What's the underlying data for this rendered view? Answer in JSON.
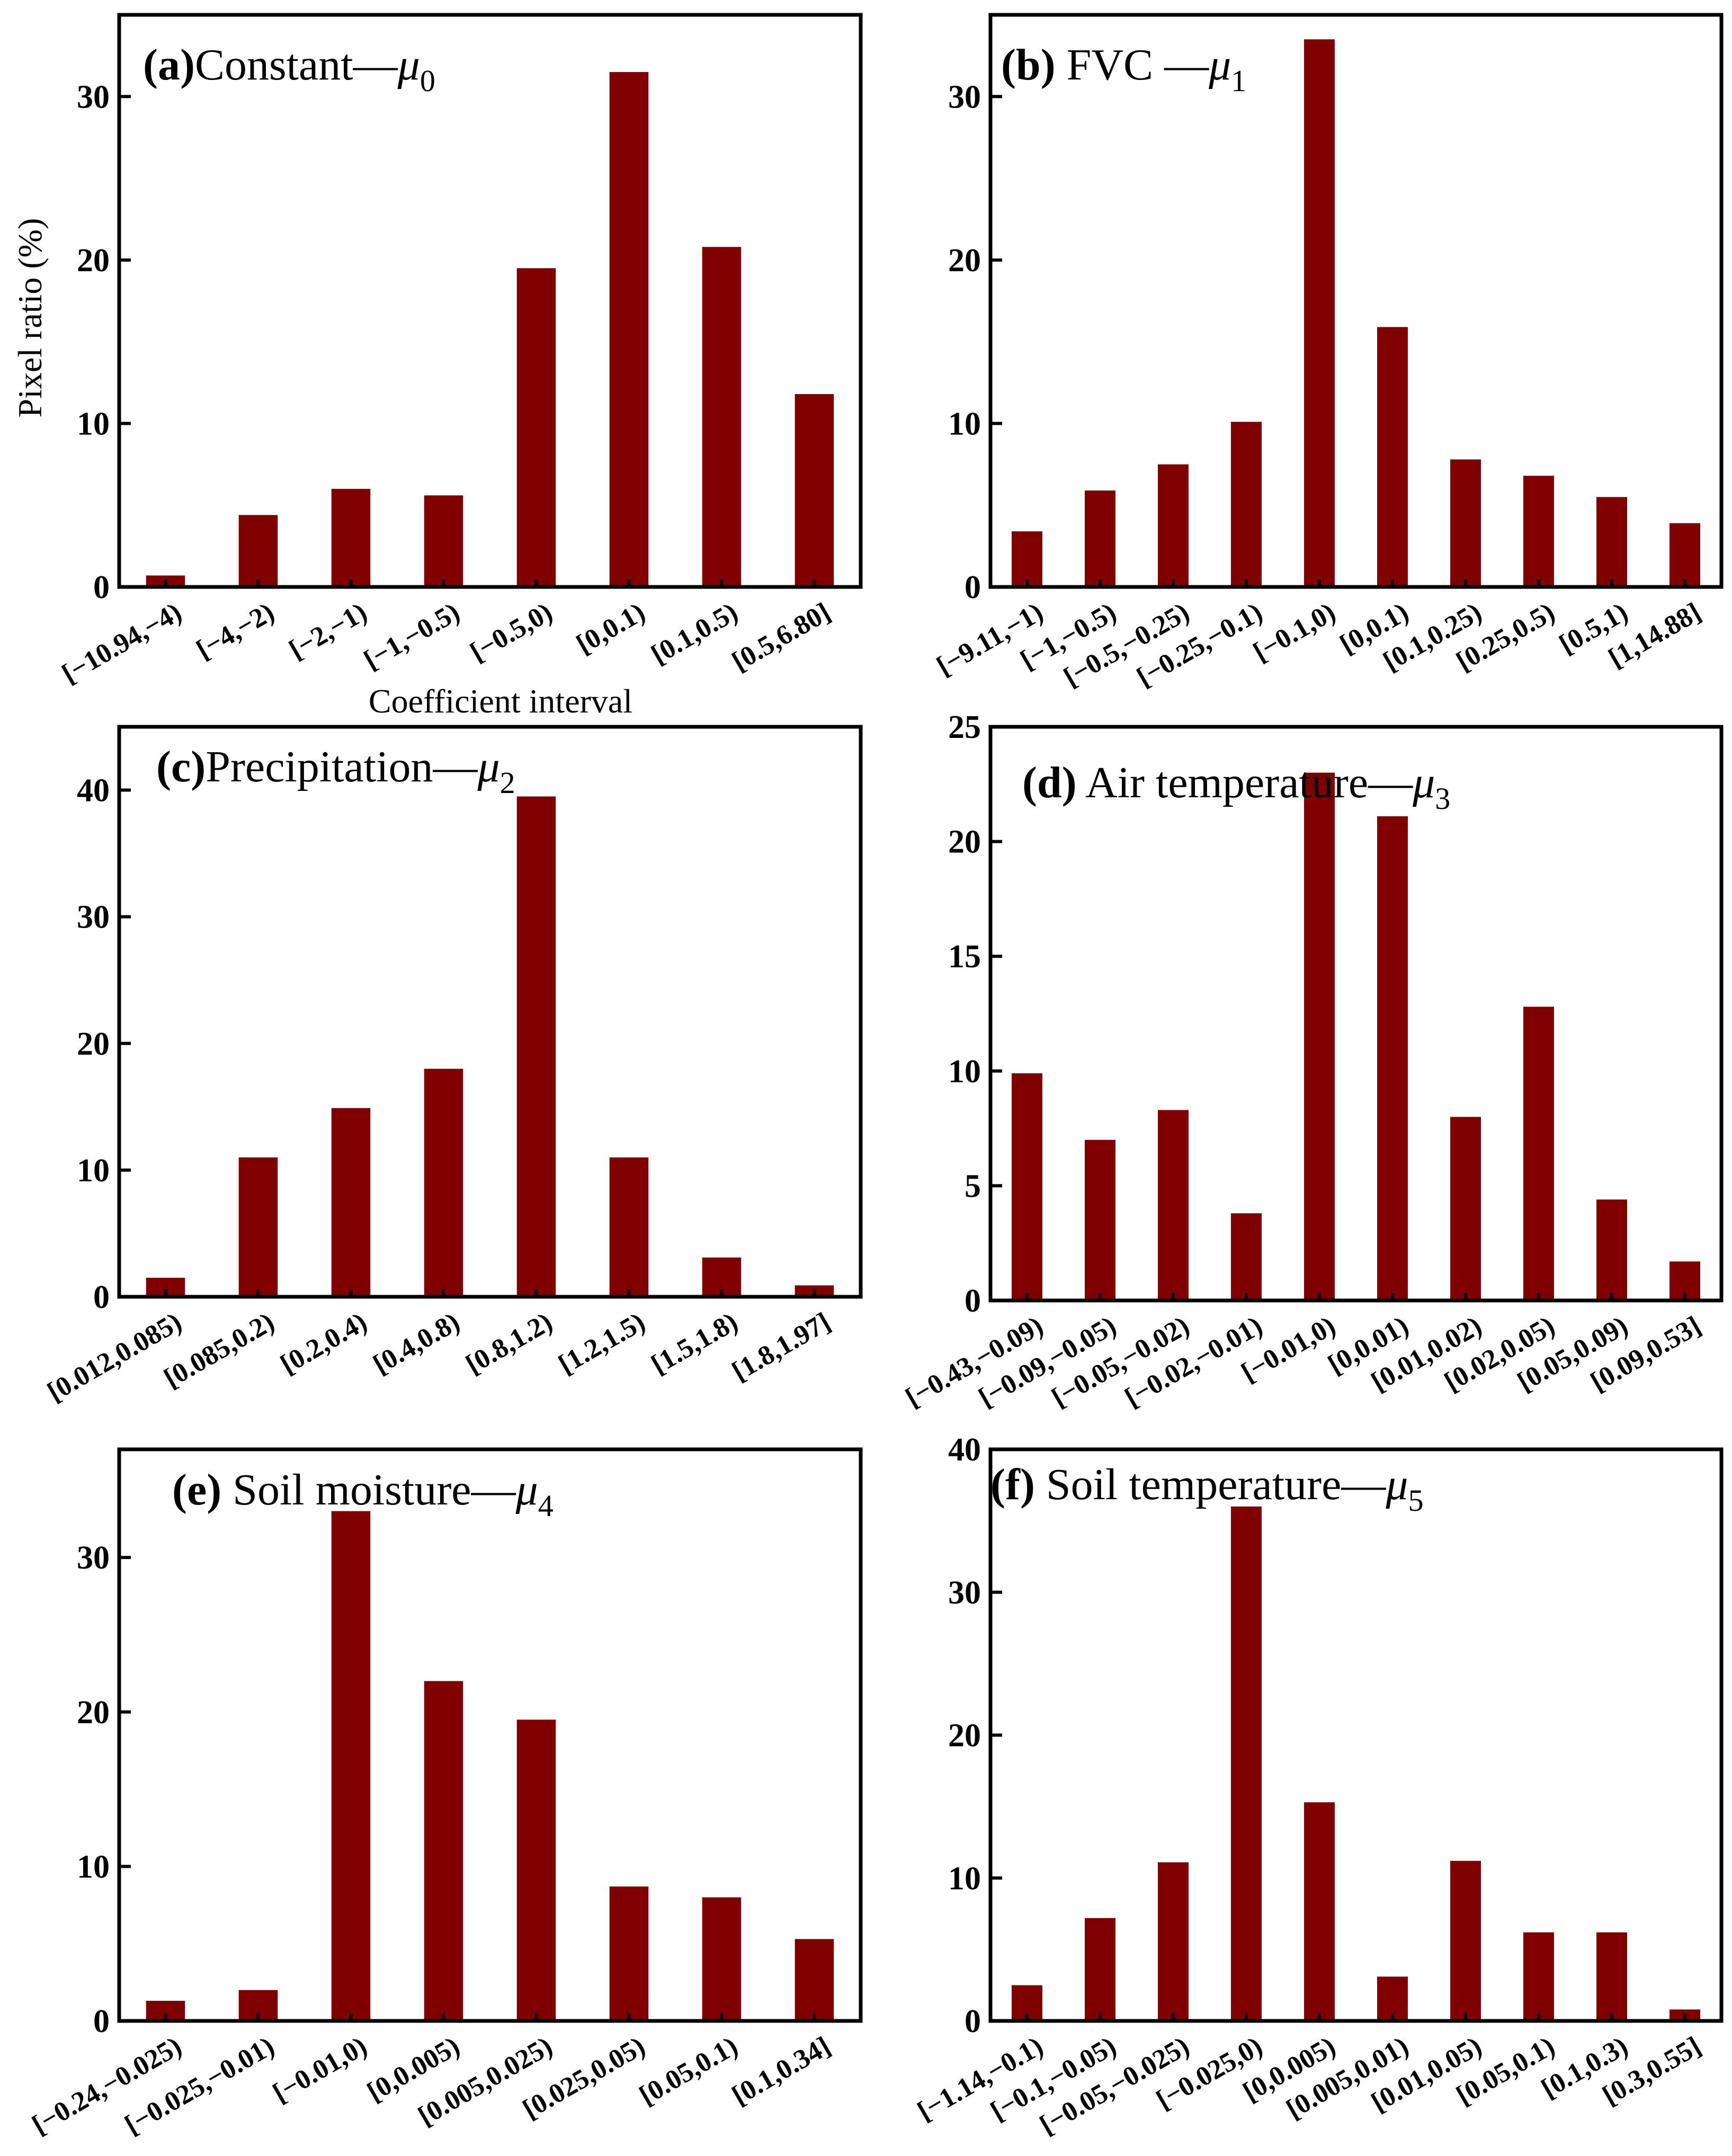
{
  "figure": {
    "y_axis_label": "Pixel ratio (%)",
    "x_axis_label": "Coefficient interval",
    "bar_color": "#800000"
  },
  "chart_data": [
    {
      "type": "bar",
      "panel_letter": "(a)",
      "title_text": "Constant—",
      "symbol": "μ",
      "subscript": "0",
      "title": "(a) Constant—μ0",
      "categories": [
        "[−10.94,−4)",
        "[−4,−2)",
        "[−2,−1)",
        "[−1,−0.5)",
        "[−0.5,0)",
        "[0,0.1)",
        "[0.1,0.5)",
        "[0.5,6.80]"
      ],
      "values": [
        0.7,
        4.4,
        6.0,
        5.6,
        19.5,
        31.5,
        20.8,
        11.8
      ],
      "ylim": [
        0,
        35
      ],
      "yticks": [
        0,
        10,
        20,
        30
      ],
      "ylabel": "Pixel ratio (%)",
      "xlabel": "Coefficient interval"
    },
    {
      "type": "bar",
      "panel_letter": "(b)",
      "title_text": " FVC —",
      "symbol": "μ",
      "subscript": "1",
      "title": "(b) FVC —μ1",
      "categories": [
        "[−9.11,−1)",
        "[−1,−0.5)",
        "[−0.5,−0.25)",
        "[−0.25,−0.1)",
        "[−0.1,0)",
        "[0,0.1)",
        "[0.1,0.25)",
        "[0.25,0.5)",
        "[0.5,1)",
        "[1,14.88]"
      ],
      "values": [
        3.4,
        5.9,
        7.5,
        10.1,
        33.5,
        15.9,
        7.8,
        6.8,
        5.5,
        3.9
      ],
      "ylim": [
        0,
        35
      ],
      "yticks": [
        0,
        10,
        20,
        30
      ],
      "ylabel": "",
      "xlabel": ""
    },
    {
      "type": "bar",
      "panel_letter": "(c)",
      "title_text": "Precipitation—",
      "symbol": "μ",
      "subscript": "2",
      "title": "(c)Precipitation—μ2",
      "categories": [
        "[0.012,0.085)",
        "[0.085,0.2)",
        "[0.2,0.4)",
        "[0.4,0.8)",
        "[0.8,1.2)",
        "[1.2,1.5)",
        "[1.5,1.8)",
        "[1.8,1.97]"
      ],
      "values": [
        1.5,
        11.0,
        14.9,
        18.0,
        39.5,
        11.0,
        3.1,
        0.9
      ],
      "ylim": [
        0,
        45
      ],
      "yticks": [
        0,
        10,
        20,
        30,
        40
      ],
      "ylabel": "",
      "xlabel": ""
    },
    {
      "type": "bar",
      "panel_letter": "(d)",
      "title_text": " Air temperature—",
      "symbol": "μ",
      "subscript": "3",
      "title": "(d) Air temperature—μ3",
      "categories": [
        "[−0.43,−0.09)",
        "[−0.09,−0.05)",
        "[−0.05,−0.02)",
        "[−0.02,−0.01)",
        "[−0.01,0)",
        "[0,0.01)",
        "[0.01,0.02)",
        "[0.02,0.05)",
        "[0.05,0.09)",
        "[0.09,0.53]"
      ],
      "values": [
        9.9,
        7.0,
        8.3,
        3.8,
        23.0,
        21.1,
        8.0,
        12.8,
        4.4,
        1.7
      ],
      "ylim": [
        0,
        25
      ],
      "yticks": [
        0,
        5,
        10,
        15,
        20,
        25
      ],
      "ylabel": "",
      "xlabel": ""
    },
    {
      "type": "bar",
      "panel_letter": "(e)",
      "title_text": " Soil moisture—",
      "symbol": "μ",
      "subscript": "4",
      "title": "(e) Soil moisture—μ4",
      "categories": [
        "[−0.24,−0.025)",
        "[−0.025,−0.01)",
        "[−0.01,0)",
        "[0,0.005)",
        "[0.005,0.025)",
        "[0.025,0.05)",
        "[0.05,0.1)",
        "[0.1,0.34]"
      ],
      "values": [
        1.3,
        2.0,
        33.0,
        22.0,
        19.5,
        8.7,
        8.0,
        5.3
      ],
      "ylim": [
        0,
        37
      ],
      "yticks": [
        0,
        10,
        20,
        30
      ],
      "ylabel": "",
      "xlabel": ""
    },
    {
      "type": "bar",
      "panel_letter": "(f)",
      "title_text": " Soil temperature—",
      "symbol": "μ",
      "subscript": "5",
      "title": "(f) Soil temperature—μ5",
      "categories": [
        "[−1.14,−0.1)",
        "[−0.1,−0.05)",
        "[−0.05,−0.025)",
        "[−0.025,0)",
        "[0,0.005)",
        "[0.005,0.01)",
        "[0.01,0.05)",
        "[0.05,0.1)",
        "[0.1,0.3)",
        "[0.3,0.55]"
      ],
      "values": [
        2.5,
        7.2,
        11.1,
        36.0,
        15.3,
        3.1,
        11.2,
        6.2,
        6.2,
        0.8
      ],
      "ylim": [
        0,
        40
      ],
      "yticks": [
        0,
        10,
        20,
        30,
        40
      ],
      "ylabel": "",
      "xlabel": ""
    }
  ]
}
